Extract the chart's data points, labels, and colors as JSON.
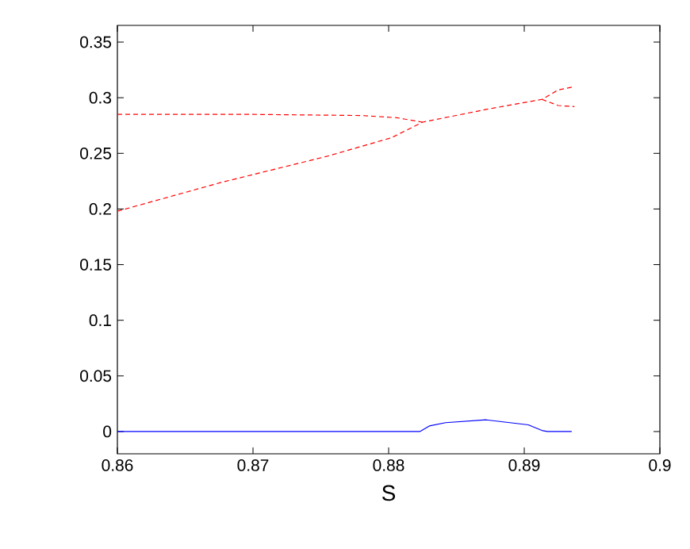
{
  "chart_data": {
    "type": "line",
    "xlabel": "S",
    "xlim": [
      0.86,
      0.9
    ],
    "ylim": [
      -0.02,
      0.365
    ],
    "xticks": [
      0.86,
      0.87,
      0.88,
      0.89,
      0.9
    ],
    "yticks": [
      0,
      0.05,
      0.1,
      0.15,
      0.2,
      0.25,
      0.3,
      0.35
    ],
    "series": [
      {
        "color": "#ff0000",
        "line_style": "dashed",
        "x": [
          0.86,
          0.8677,
          0.8755,
          0.8802,
          0.8825,
          0.8872,
          0.8913,
          0.8925,
          0.8937
        ],
        "values": [
          0.198,
          0.224,
          0.2475,
          0.264,
          0.278,
          0.2895,
          0.2985,
          0.307,
          0.31
        ]
      },
      {
        "color": "#ff0000",
        "line_style": "dashed",
        "x": [
          0.86,
          0.87,
          0.878,
          0.8806,
          0.8825
        ],
        "values": [
          0.285,
          0.285,
          0.284,
          0.282,
          0.278
        ]
      },
      {
        "color": "#ff0000",
        "line_style": "dashed",
        "x": [
          0.8913,
          0.8925,
          0.8937
        ],
        "values": [
          0.2985,
          0.293,
          0.292
        ]
      },
      {
        "color": "#0000ff",
        "line_style": "solid",
        "x": [
          0.86,
          0.8823,
          0.883,
          0.8842,
          0.8872,
          0.8903,
          0.8913,
          0.8917,
          0.8935
        ],
        "values": [
          0,
          0,
          0.005,
          0.008,
          0.0105,
          0.006,
          0.001,
          0,
          0
        ]
      }
    ]
  }
}
